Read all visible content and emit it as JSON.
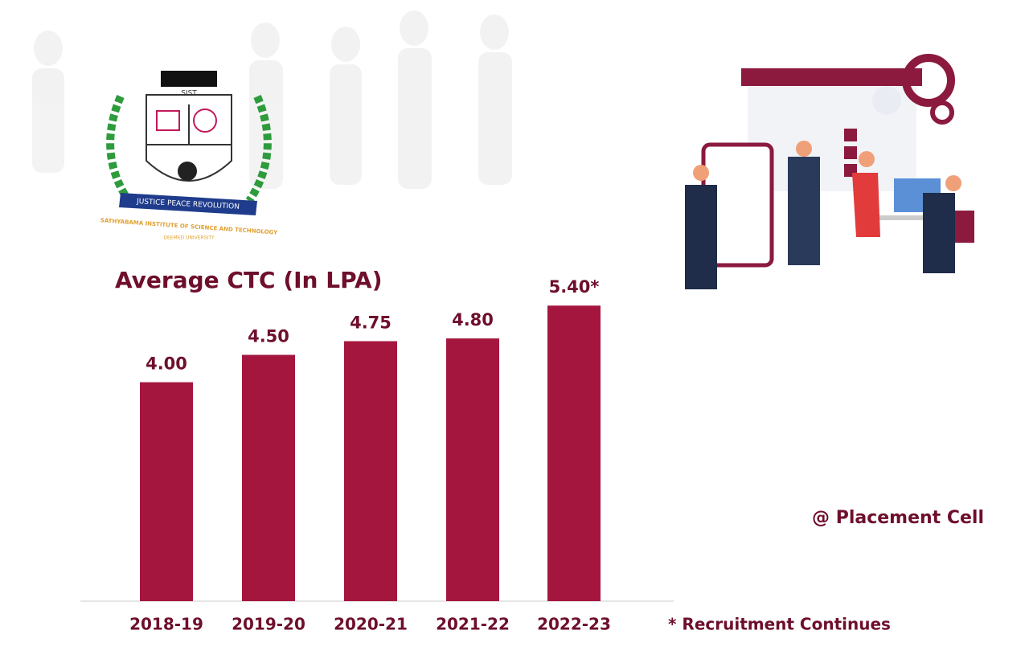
{
  "chart_data": {
    "type": "bar",
    "title": "Average CTC (In LPA)",
    "categories": [
      "2018-19",
      "2019-20",
      "2020-21",
      "2021-22",
      "2022-23"
    ],
    "values": [
      4.0,
      4.5,
      4.75,
      4.8,
      5.4
    ],
    "value_labels": [
      "4.00",
      "4.50",
      "4.75",
      "4.80",
      "5.40*"
    ],
    "color": "#a5163f",
    "ylim": [
      0,
      5.8
    ],
    "note": "* Recruitment Continues",
    "source": "@ Placement Cell"
  },
  "logo": {
    "abbr": "SIST",
    "motto": "JUSTICE PEACE REVOLUTION",
    "name": "SATHYABAMA INSTITUTE OF SCIENCE AND TECHNOLOGY",
    "status": "DEEMED UNIVERSITY"
  }
}
